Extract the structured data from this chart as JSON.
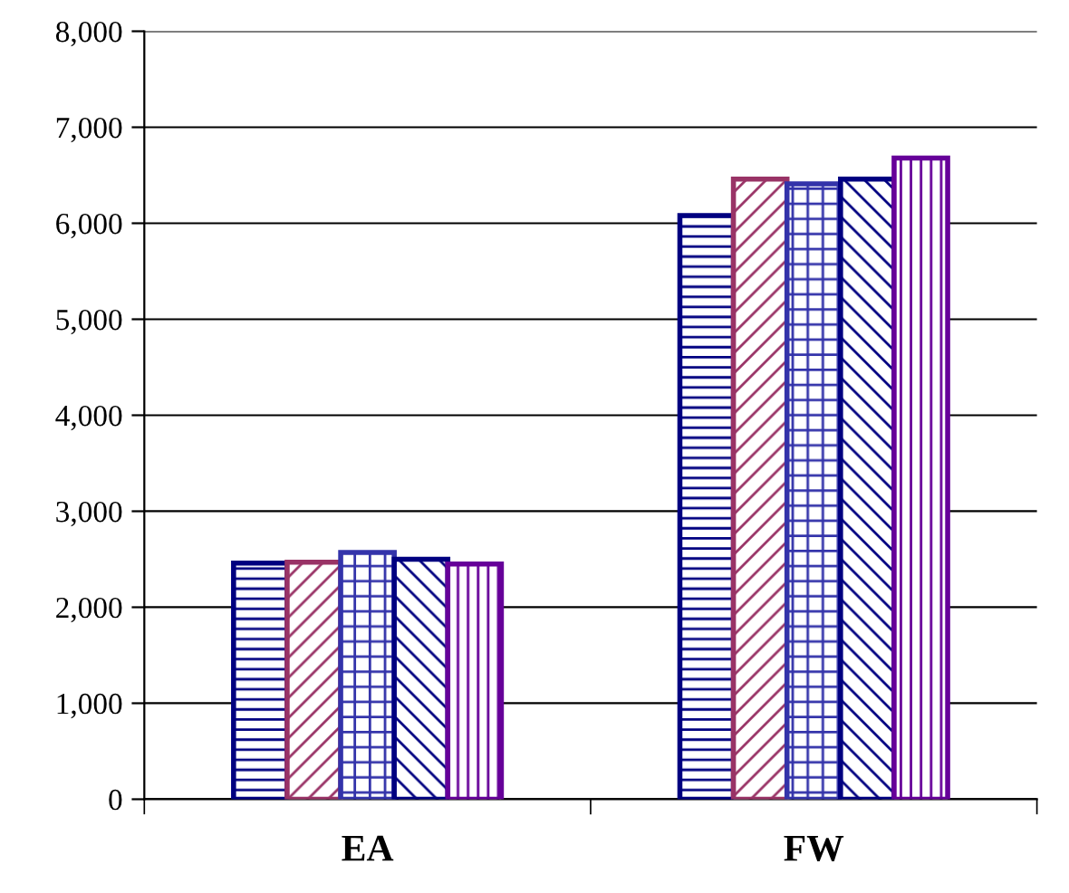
{
  "chart_data": {
    "type": "bar",
    "categories": [
      "EA",
      "FW"
    ],
    "series": [
      {
        "color": "#000080",
        "values": [
          2460,
          6080
        ]
      },
      {
        "color": "#993366",
        "values": [
          2470,
          6460
        ]
      },
      {
        "color": "#3333aa",
        "values": [
          2570,
          6410
        ]
      },
      {
        "color": "#000080",
        "values": [
          2500,
          6460
        ]
      },
      {
        "color": "#660099",
        "values": [
          2450,
          6680
        ]
      }
    ],
    "ylim": [
      0,
      8000
    ],
    "yticks": [
      {
        "value": 0,
        "label": "0"
      },
      {
        "value": 1000,
        "label": "1,000"
      },
      {
        "value": 2000,
        "label": "2,000"
      },
      {
        "value": 3000,
        "label": "3,000"
      },
      {
        "value": 4000,
        "label": "4,000"
      },
      {
        "value": 5000,
        "label": "5,000"
      },
      {
        "value": 6000,
        "label": "6,000"
      },
      {
        "value": 7000,
        "label": "7,000"
      },
      {
        "value": 8000,
        "label": "8,000"
      }
    ],
    "grid": "y"
  }
}
